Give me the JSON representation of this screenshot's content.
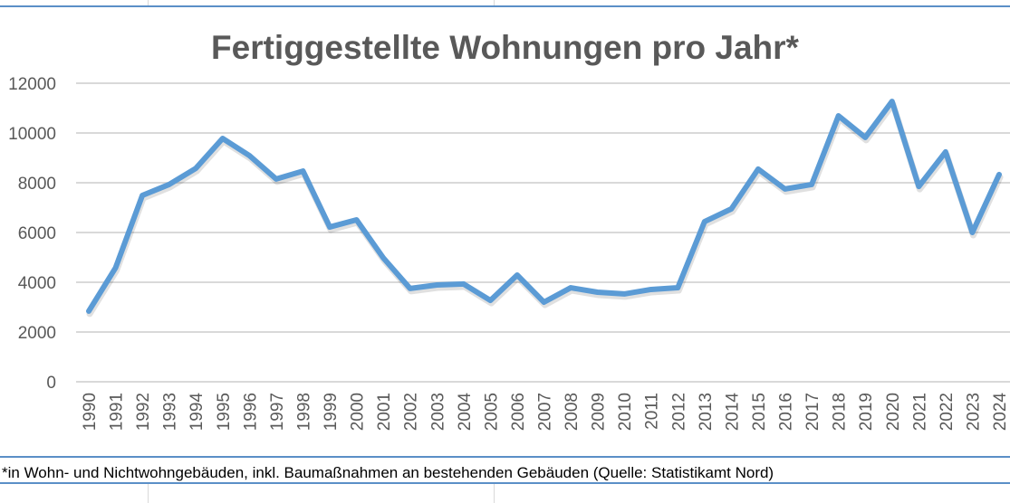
{
  "chart_data": {
    "type": "line",
    "title": "Fertiggestellte Wohnungen pro Jahr*",
    "xlabel": "",
    "ylabel": "",
    "ylim": [
      0,
      12000
    ],
    "yticks": [
      "0",
      "2000",
      "4000",
      "6000",
      "8000",
      "10000",
      "12000"
    ],
    "grid": true,
    "legend": "none",
    "categories": [
      "1990",
      "1991",
      "1992",
      "1993",
      "1994",
      "1995",
      "1996",
      "1997",
      "1998",
      "1999",
      "2000",
      "2001",
      "2002",
      "2003",
      "2004",
      "2005",
      "2006",
      "2007",
      "2008",
      "2009",
      "2010",
      "2011",
      "2012",
      "2013",
      "2014",
      "2015",
      "2016",
      "2017",
      "2018",
      "2019",
      "2020",
      "2021",
      "2022",
      "2023",
      "2024"
    ],
    "series": [
      {
        "name": "Fertiggestellte Wohnungen",
        "color": "#5b9bd5",
        "values": [
          2840,
          4580,
          7490,
          7930,
          8580,
          9780,
          9090,
          8150,
          8470,
          6220,
          6510,
          4980,
          3750,
          3890,
          3930,
          3270,
          4290,
          3200,
          3780,
          3600,
          3530,
          3710,
          3780,
          6440,
          6950,
          8550,
          7750,
          7930,
          10690,
          9820,
          11270,
          7850,
          9240,
          6000,
          8330
        ]
      }
    ]
  },
  "footnote": "*in Wohn- und Nichtwohngebäuden, inkl. Baumaßnahmen an bestehenden Gebäuden (Quelle: Statistikamt Nord)"
}
